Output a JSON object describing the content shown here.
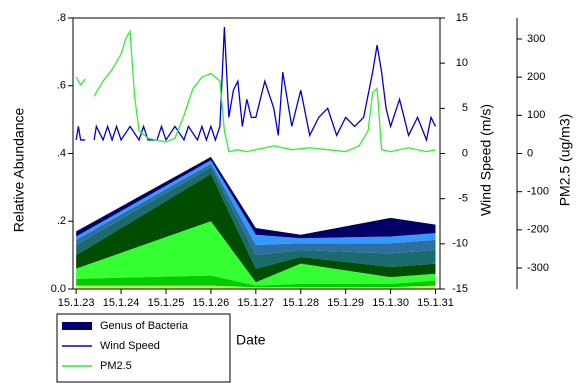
{
  "chart_data": {
    "type": "area",
    "x_label": "Date",
    "y_label": "Relative Abundance",
    "y2_label": "Wind Speed (m/s)",
    "y3_label": "PM2.5 (ug/m3)",
    "xlim": [
      22.93,
      31.1
    ],
    "xticks": [
      {
        "value": 23,
        "label": "15.1.23"
      },
      {
        "value": 24,
        "label": "15.1.24"
      },
      {
        "value": 25,
        "label": "15.1.25"
      },
      {
        "value": 26,
        "label": "15.1.26"
      },
      {
        "value": 27,
        "label": "15.1.27"
      },
      {
        "value": 28,
        "label": "15.1.28"
      },
      {
        "value": 29,
        "label": "15.1.29"
      },
      {
        "value": 30,
        "label": "15.1.30"
      },
      {
        "value": 31,
        "label": "15.1.31"
      }
    ],
    "ylim": [
      0,
      0.8
    ],
    "yticks": [
      {
        "value": 0,
        "label": "0.0"
      },
      {
        "value": 0.2,
        "label": ".2"
      },
      {
        "value": 0.4,
        "label": ".4"
      },
      {
        "value": 0.6,
        "label": ".6"
      },
      {
        "value": 0.8,
        "label": ".8"
      }
    ],
    "y2lim": [
      -15,
      15
    ],
    "y2ticks": [
      -15,
      -10,
      -5,
      0,
      5,
      10,
      15
    ],
    "y3lim": [
      -355,
      355
    ],
    "y3ticks": [
      -300,
      -200,
      -100,
      0,
      100,
      200,
      300
    ],
    "bacteria": {
      "name": "Genus of Bacteria",
      "x": [
        23,
        26,
        27,
        28,
        30,
        31
      ],
      "layers": [
        {
          "color": "#ccff66",
          "values": [
            0.01,
            0.01,
            0.005,
            0.005,
            0.005,
            0.01
          ]
        },
        {
          "color": "#00cc00",
          "values": [
            0.02,
            0.03,
            0.005,
            0.01,
            0.01,
            0.015
          ]
        },
        {
          "color": "#33ff33",
          "values": [
            0.03,
            0.16,
            0.01,
            0.06,
            0.02,
            0.02
          ]
        },
        {
          "color": "#004d00",
          "values": [
            0.04,
            0.14,
            0.04,
            0.02,
            0.03,
            0.03
          ]
        },
        {
          "color": "#1a6b6b",
          "values": [
            0.03,
            0.02,
            0.04,
            0.02,
            0.04,
            0.04
          ]
        },
        {
          "color": "#2f6fa0",
          "values": [
            0.015,
            0.01,
            0.03,
            0.02,
            0.03,
            0.03
          ]
        },
        {
          "color": "#3399ff",
          "values": [
            0.01,
            0.01,
            0.03,
            0.015,
            0.02,
            0.02
          ]
        },
        {
          "color": "#000066",
          "values": [
            0.015,
            0.01,
            0.02,
            0.01,
            0.055,
            0.025
          ]
        }
      ]
    },
    "series": [
      {
        "name": "Wind Speed",
        "color": "#0000cc",
        "axis": "y2",
        "x": [
          23.0,
          23.05,
          23.1,
          23.2,
          23.3,
          23.4,
          23.45,
          23.6,
          23.7,
          23.8,
          23.9,
          24.0,
          24.2,
          24.4,
          24.5,
          24.6,
          24.8,
          24.9,
          25.0,
          25.2,
          25.4,
          25.5,
          25.7,
          25.8,
          25.9,
          26.0,
          26.1,
          26.2,
          26.3,
          26.4,
          26.5,
          26.6,
          26.7,
          26.8,
          26.9,
          27.0,
          27.2,
          27.4,
          27.5,
          27.6,
          27.8,
          28.0,
          28.2,
          28.4,
          28.6,
          28.8,
          29.0,
          29.2,
          29.4,
          29.6,
          29.7,
          29.8,
          29.9,
          30.0,
          30.2,
          30.4,
          30.6,
          30.8,
          30.9,
          31.0
        ],
        "values": [
          1.5,
          3,
          1.5,
          1.5,
          null,
          1.5,
          3,
          1.5,
          3,
          1.5,
          3,
          1.5,
          3,
          1.5,
          3,
          1.5,
          1.5,
          3,
          1.5,
          3,
          1.5,
          3,
          1.5,
          3,
          1.5,
          3,
          1.5,
          3,
          14,
          4,
          7,
          8,
          3,
          6,
          4,
          4,
          8,
          5,
          2,
          9,
          3,
          7,
          2,
          4,
          5,
          2,
          4,
          3,
          4,
          9,
          12,
          9,
          5,
          3,
          6,
          2,
          4,
          1.5,
          4,
          3
        ]
      },
      {
        "name": "PM2.5",
        "color": "#33ee33",
        "axis": "y3",
        "x": [
          23.0,
          23.1,
          23.2,
          23.3,
          23.4,
          23.5,
          23.6,
          23.8,
          24.0,
          24.1,
          24.2,
          24.3,
          24.4,
          24.6,
          24.8,
          25.0,
          25.2,
          25.4,
          25.6,
          25.8,
          26.0,
          26.2,
          26.3,
          26.4,
          26.6,
          26.8,
          27.0,
          27.4,
          27.8,
          28.2,
          28.6,
          29.0,
          29.3,
          29.5,
          29.6,
          29.7,
          29.8,
          30.0,
          30.4,
          30.8,
          31.0
        ],
        "values": [
          200,
          180,
          195,
          null,
          150,
          170,
          190,
          220,
          260,
          300,
          320,
          150,
          60,
          40,
          35,
          30,
          40,
          100,
          170,
          200,
          210,
          190,
          60,
          5,
          10,
          5,
          10,
          20,
          10,
          15,
          10,
          5,
          20,
          60,
          160,
          170,
          10,
          5,
          15,
          5,
          10
        ]
      }
    ]
  }
}
